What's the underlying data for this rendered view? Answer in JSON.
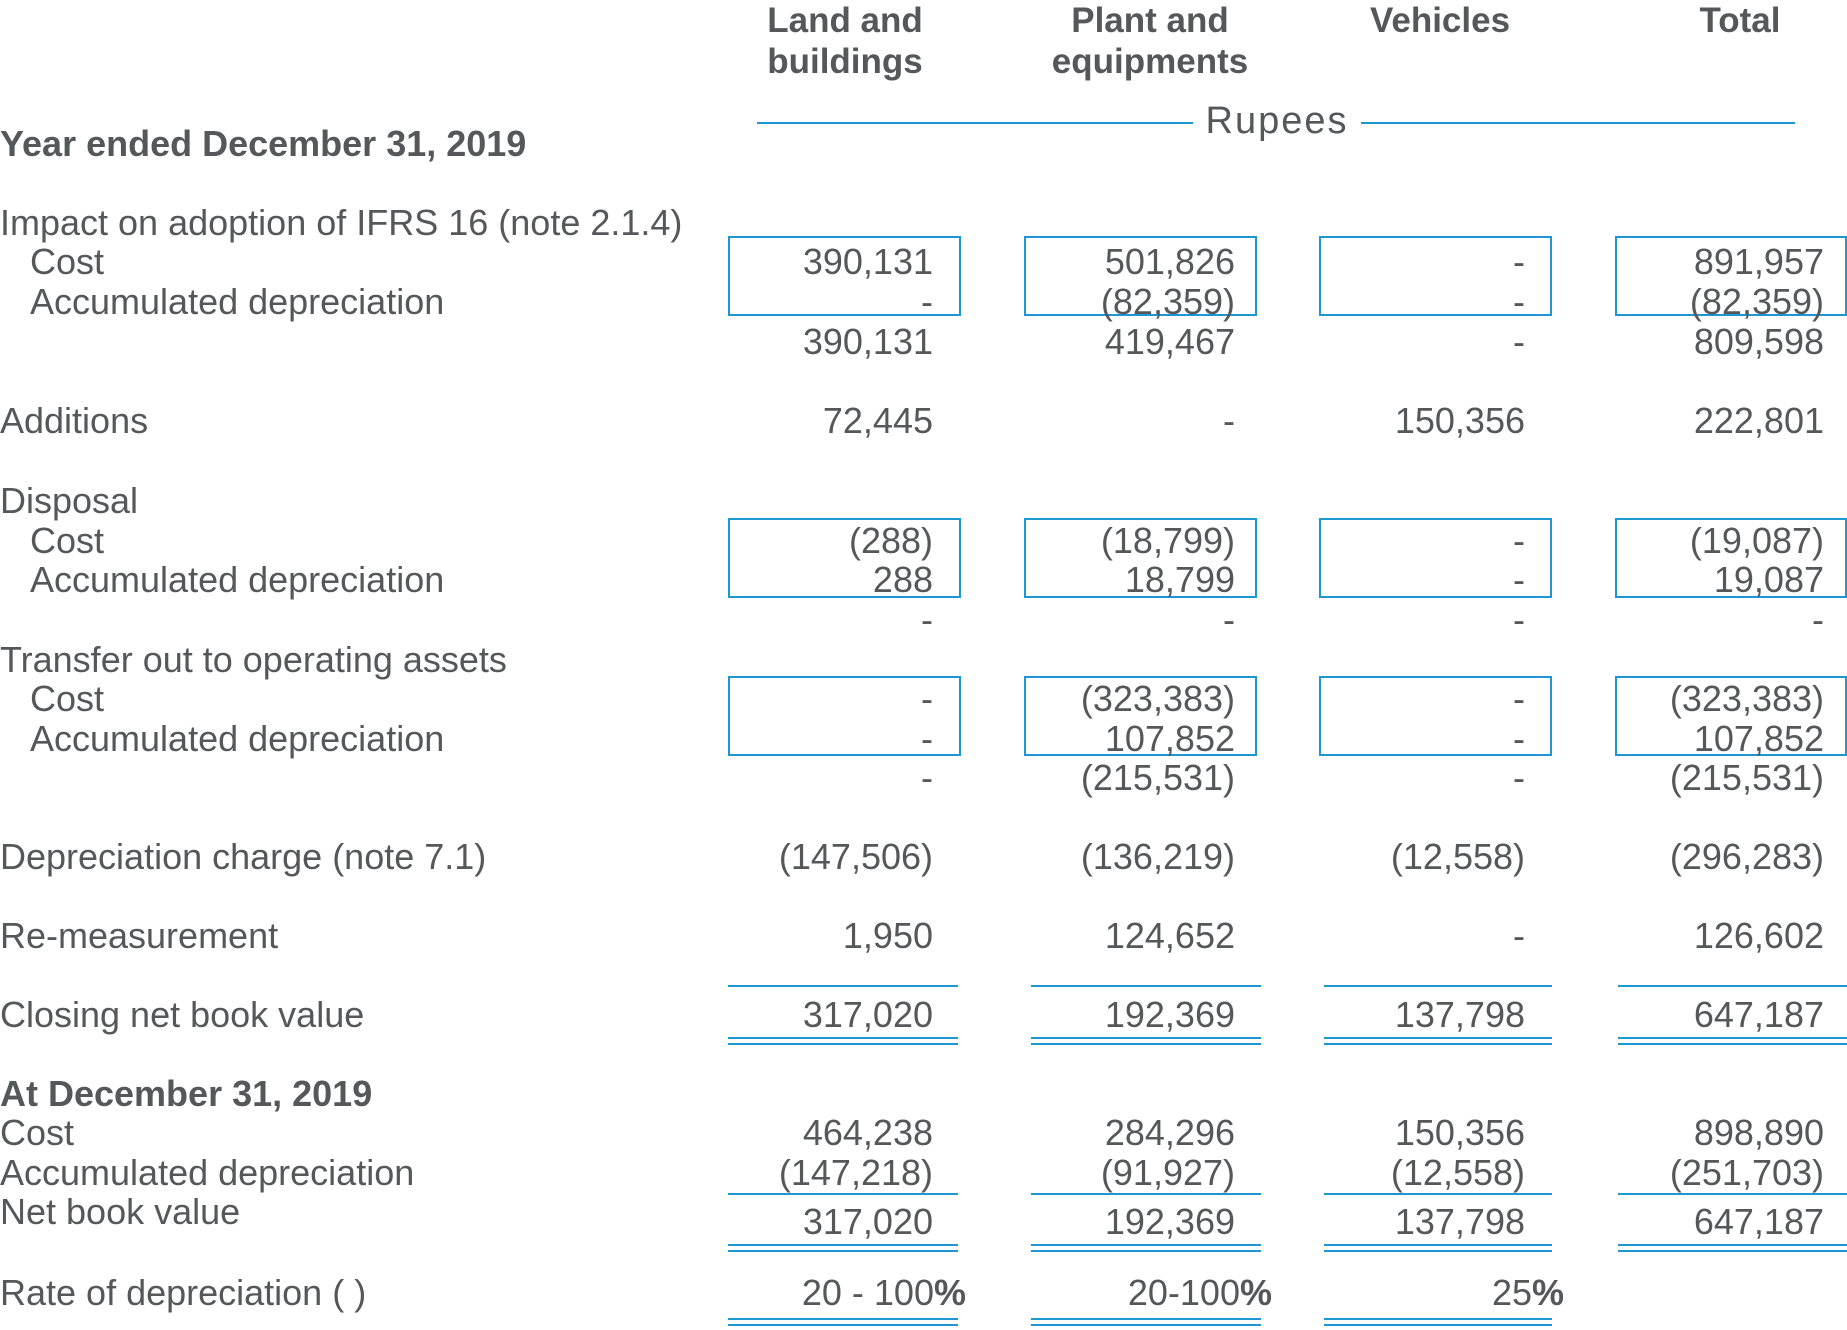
{
  "header": {
    "col1": "Land and buildings",
    "col2": "Plant and equipments",
    "col3": "Vehicles",
    "col4": "Total",
    "currency": "Rupees"
  },
  "sections": {
    "year_ended": "Year ended December 31, 2019",
    "at_date": "At December 31, 2019"
  },
  "labels": {
    "impact": "Impact on adoption of IFRS 16 (note 2.1.4)",
    "cost": "Cost",
    "acc_dep": "Accumulated depreciation",
    "additions": "Additions",
    "disposal": "Disposal",
    "transfer": "Transfer out to operating assets",
    "dep_charge": "Depreciation charge (note 7.1)",
    "remeasurement": "Re-measurement",
    "closing_nbv": "Closing net book value",
    "nbv": "Net book value",
    "rate": "Rate of depreciation (  )"
  },
  "values": {
    "impact_cost": [
      "390,131",
      "501,826",
      "-",
      "891,957"
    ],
    "impact_acc": [
      "-",
      "(82,359)",
      "-",
      "(82,359)"
    ],
    "impact_net": [
      "390,131",
      "419,467",
      "-",
      "809,598"
    ],
    "additions": [
      "72,445",
      "-",
      "150,356",
      "222,801"
    ],
    "disposal_cost": [
      "(288)",
      "(18,799)",
      "-",
      "(19,087)"
    ],
    "disposal_acc": [
      "288",
      "18,799",
      "-",
      "19,087"
    ],
    "disposal_net": [
      "-",
      "-",
      "-",
      "-"
    ],
    "transfer_cost": [
      "-",
      "(323,383)",
      "-",
      "(323,383)"
    ],
    "transfer_acc": [
      "-",
      "107,852",
      "-",
      "107,852"
    ],
    "transfer_net": [
      "-",
      "(215,531)",
      "-",
      "(215,531)"
    ],
    "dep_charge": [
      "(147,506)",
      "(136,219)",
      "(12,558)",
      "(296,283)"
    ],
    "remeasurement": [
      "1,950",
      "124,652",
      "-",
      "126,602"
    ],
    "closing_nbv": [
      "317,020",
      "192,369",
      "137,798",
      "647,187"
    ],
    "at_cost": [
      "464,238",
      "284,296",
      "150,356",
      "898,890"
    ],
    "at_acc": [
      "(147,218)",
      "(91,927)",
      "(12,558)",
      "(251,703)"
    ],
    "at_nbv": [
      "317,020",
      "192,369",
      "137,798",
      "647,187"
    ],
    "rate": [
      "20 - 100",
      "20-100",
      "25"
    ],
    "percent_sign": "%"
  },
  "colors": {
    "accent": "#1e96d2",
    "text": "#555759"
  }
}
